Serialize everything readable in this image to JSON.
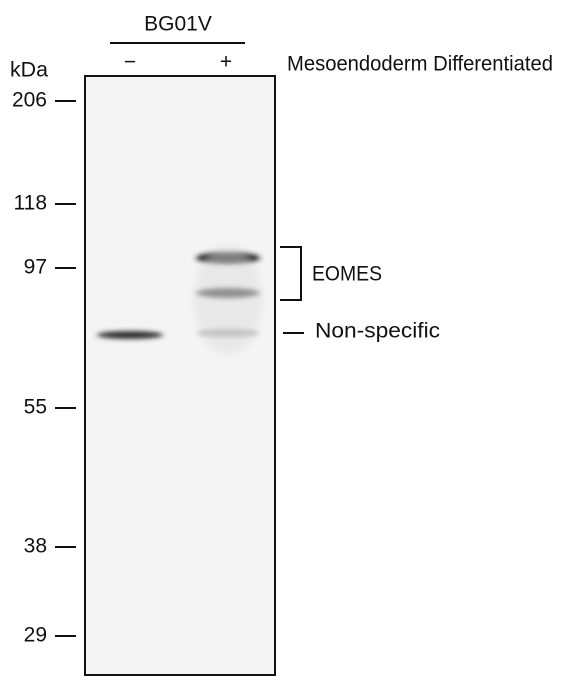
{
  "header": {
    "cell_line": "BG01V",
    "lanes": [
      "−",
      "+"
    ],
    "condition": "Mesoendoderm Differentiated"
  },
  "markers": {
    "unit": "kDa",
    "values": [
      "206",
      "118",
      "97",
      "55",
      "38",
      "29"
    ]
  },
  "annotations": {
    "target": "EOMES",
    "nonspecific": "Non-specific"
  }
}
